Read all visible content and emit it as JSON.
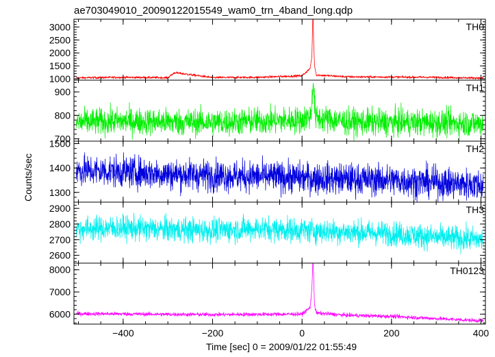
{
  "chart_data": {
    "type": "line",
    "title": "ae703049010_20090122015549_wam0_trn_4band_long.qdp",
    "xlabel": "Time [sec] 0 = 2009/01/22 01:55:49",
    "ylabel": "Counts/sec",
    "xlim": [
      -510,
      410
    ],
    "x_ticks": [
      -400,
      -200,
      0,
      200,
      400
    ],
    "x_tick_labels": [
      "−400",
      "−200",
      "0",
      "200",
      "400"
    ],
    "burst_time": 25,
    "panels": [
      {
        "name": "TH0",
        "color": "#ff0000",
        "ylim": [
          950,
          3300
        ],
        "y_ticks": [
          1000,
          1500,
          2000,
          2500,
          3000
        ],
        "y_tick_labels": [
          "1000",
          "1500",
          "2000",
          "2500",
          "3000"
        ],
        "baseline": 1050,
        "noise": 30,
        "x": [
          -505,
          -400,
          -300,
          -285,
          -200,
          -100,
          -50,
          0,
          18,
          22,
          24,
          25,
          26,
          28,
          32,
          100,
          200,
          300,
          405
        ],
        "y": [
          1040,
          1060,
          1045,
          1240,
          1050,
          1060,
          1090,
          1120,
          1400,
          1850,
          3300,
          3300,
          2400,
          1500,
          1150,
          1080,
          1070,
          1060,
          1030
        ]
      },
      {
        "name": "TH1",
        "color": "#00ee00",
        "ylim": [
          690,
          950
        ],
        "y_ticks": [
          700,
          800,
          900
        ],
        "y_tick_labels": [
          "700",
          "800",
          "900"
        ],
        "baseline": 770,
        "noise": 40,
        "x": [
          -505,
          -400,
          -300,
          -200,
          -100,
          0,
          20,
          25,
          30,
          100,
          200,
          300,
          405
        ],
        "y": [
          770,
          775,
          772,
          770,
          775,
          780,
          800,
          950,
          790,
          772,
          770,
          768,
          765
        ]
      },
      {
        "name": "TH2",
        "color": "#0000dd",
        "ylim": [
          1260,
          1510
        ],
        "y_ticks": [
          1300,
          1400,
          1500
        ],
        "y_tick_labels": [
          "1300",
          "1400",
          "1500"
        ],
        "baseline": 1370,
        "noise": 45,
        "x": [
          -505,
          -400,
          -300,
          -200,
          -100,
          0,
          100,
          200,
          300,
          405
        ],
        "y": [
          1390,
          1385,
          1375,
          1370,
          1365,
          1360,
          1355,
          1350,
          1340,
          1330
        ]
      },
      {
        "name": "TH3",
        "color": "#00eeee",
        "ylim": [
          2550,
          2940
        ],
        "y_ticks": [
          2600,
          2700,
          2800,
          2900
        ],
        "y_tick_labels": [
          "2600",
          "2700",
          "2800",
          "2900"
        ],
        "baseline": 2760,
        "noise": 55,
        "x": [
          -505,
          -400,
          -300,
          -200,
          -100,
          0,
          100,
          200,
          300,
          405
        ],
        "y": [
          2770,
          2775,
          2765,
          2760,
          2770,
          2760,
          2750,
          2740,
          2715,
          2700
        ]
      },
      {
        "name": "TH0123",
        "color": "#ff00ff",
        "ylim": [
          5550,
          8300
        ],
        "y_ticks": [
          6000,
          7000,
          8000
        ],
        "y_tick_labels": [
          "6000",
          "7000",
          "8000"
        ],
        "baseline": 5980,
        "noise": 60,
        "x": [
          -505,
          -400,
          -300,
          -200,
          -100,
          0,
          18,
          22,
          24,
          25,
          26,
          28,
          32,
          100,
          200,
          300,
          405
        ],
        "y": [
          6020,
          6010,
          5990,
          5980,
          5990,
          6000,
          6300,
          7100,
          8300,
          8300,
          7600,
          6400,
          6050,
          5950,
          5900,
          5800,
          5700
        ]
      }
    ]
  }
}
